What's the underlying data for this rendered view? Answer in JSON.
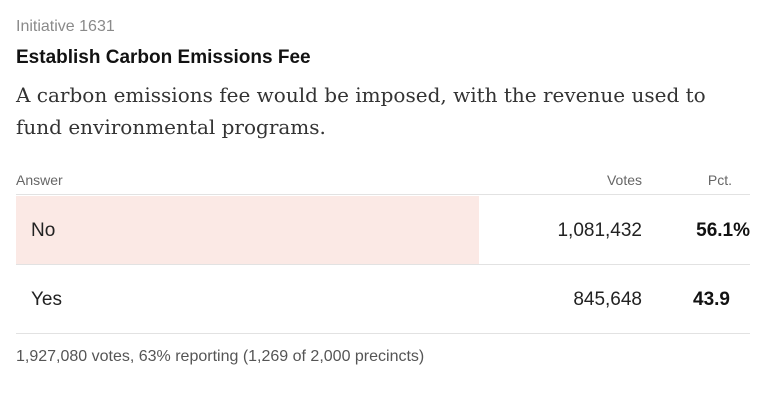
{
  "header": {
    "kicker": "Initiative 1631",
    "title": "Establish Carbon Emissions Fee",
    "description": "A carbon emissions fee would be imposed, with the revenue used to fund environmental programs."
  },
  "table": {
    "columns": {
      "answer": "Answer",
      "votes": "Votes",
      "pct": "Pct."
    },
    "rows": [
      {
        "answer": "No",
        "votes": "1,081,432",
        "pct": "56.1%",
        "share": 0.561,
        "leading": true
      },
      {
        "answer": "Yes",
        "votes": "845,648",
        "pct": "43.9",
        "share": 0.439,
        "leading": false
      }
    ]
  },
  "footer": {
    "summary": "1,927,080 votes, 63% reporting (1,269 of 2,000 precincts)"
  },
  "colors": {
    "leading_bar": "#fbe9e5"
  }
}
